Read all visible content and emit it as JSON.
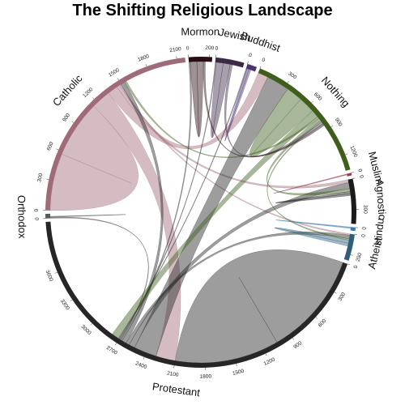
{
  "chart_data": {
    "type": "chord",
    "title": "The Shifting Religious Landscape",
    "groups": [
      {
        "name": "Nothing",
        "total": 1350,
        "color": "#3f5e1c"
      },
      {
        "name": "Muslim",
        "total": 25,
        "color": "#9b3a52"
      },
      {
        "name": "Agnostic",
        "total": 440,
        "color": "#1b1b1b"
      },
      {
        "name": "Hindu",
        "total": 35,
        "color": "#3a78b0"
      },
      {
        "name": "Atheist",
        "total": 260,
        "color": "#2f5f7a"
      },
      {
        "name": "Protestant",
        "total": 4100,
        "color": "#262626"
      },
      {
        "name": "Orthodox",
        "total": 45,
        "color": "#5a5a5a"
      },
      {
        "name": "Catholic",
        "total": 2180,
        "color": "#a06b78"
      },
      {
        "name": "Mormon",
        "total": 230,
        "color": "#2a0d12"
      },
      {
        "name": "Jewish",
        "total": 280,
        "color": "#3c2a45"
      },
      {
        "name": "Buddhist",
        "total": 95,
        "color": "#4a3472"
      }
    ],
    "ticks": {
      "Nothing": [
        0,
        300,
        600,
        900,
        1200
      ],
      "Muslim": [
        0
      ],
      "Agnostic": [
        0,
        300
      ],
      "Hindu": [
        0
      ],
      "Atheist": [
        0,
        200
      ],
      "Protestant": [
        0,
        300,
        600,
        900,
        1200,
        1500,
        1800,
        2100,
        2400,
        2700,
        3000,
        3300,
        3600
      ],
      "Orthodox": [
        0
      ],
      "Catholic": [
        0,
        300,
        600,
        900,
        1200,
        1500,
        1800,
        2100
      ],
      "Mormon": [
        0,
        200
      ],
      "Jewish": [
        0
      ],
      "Buddhist": [
        0
      ]
    },
    "flows": [
      {
        "from": "Protestant",
        "to": "Protestant",
        "value": 2100
      },
      {
        "from": "Catholic",
        "to": "Catholic",
        "value": 1150
      },
      {
        "from": "Catholic",
        "to": "Protestant",
        "value": 390
      },
      {
        "from": "Catholic",
        "to": "Nothing",
        "value": 210
      },
      {
        "from": "Catholic",
        "to": "Agnostic",
        "value": 60
      },
      {
        "from": "Catholic",
        "to": "Atheist",
        "value": 30
      },
      {
        "from": "Protestant",
        "to": "Nothing",
        "value": 460
      },
      {
        "from": "Protestant",
        "to": "Agnostic",
        "value": 120
      },
      {
        "from": "Protestant",
        "to": "Atheist",
        "value": 70
      },
      {
        "from": "Protestant",
        "to": "Catholic",
        "value": 90
      },
      {
        "from": "Protestant",
        "to": "Mormon",
        "value": 30
      },
      {
        "from": "Protestant",
        "to": "Orthodox",
        "value": 20
      },
      {
        "from": "Protestant",
        "to": "Jewish",
        "value": 20
      },
      {
        "from": "Protestant",
        "to": "Buddhist",
        "value": 20
      },
      {
        "from": "Nothing",
        "to": "Nothing",
        "value": 330
      },
      {
        "from": "Nothing",
        "to": "Protestant",
        "value": 150
      },
      {
        "from": "Nothing",
        "to": "Catholic",
        "value": 40
      },
      {
        "from": "Nothing",
        "to": "Agnostic",
        "value": 60
      },
      {
        "from": "Nothing",
        "to": "Atheist",
        "value": 30
      },
      {
        "from": "Jewish",
        "to": "Jewish",
        "value": 140
      },
      {
        "from": "Jewish",
        "to": "Nothing",
        "value": 50
      },
      {
        "from": "Mormon",
        "to": "Mormon",
        "value": 130
      },
      {
        "from": "Mormon",
        "to": "Nothing",
        "value": 40
      },
      {
        "from": "Buddhist",
        "to": "Buddhist",
        "value": 40
      },
      {
        "from": "Agnostic",
        "to": "Agnostic",
        "value": 40
      },
      {
        "from": "Atheist",
        "to": "Atheist",
        "value": 60
      },
      {
        "from": "Muslim",
        "to": "Muslim",
        "value": 10
      },
      {
        "from": "Hindu",
        "to": "Hindu",
        "value": 15
      },
      {
        "from": "Orthodox",
        "to": "Orthodox",
        "value": 10
      }
    ]
  }
}
